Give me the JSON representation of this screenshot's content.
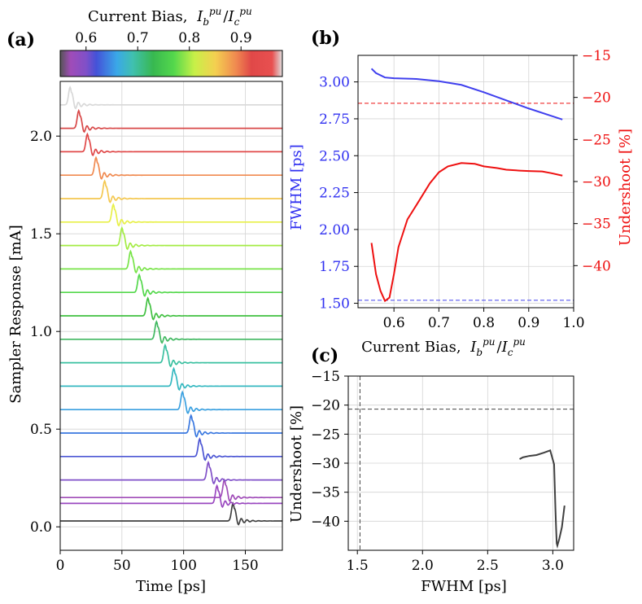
{
  "chart_data": [
    {
      "id": "a",
      "panel_label": "(a)",
      "type": "line",
      "title": "",
      "xlabel": "Time [ps]",
      "ylabel": "Sampler Response [mA]",
      "xlim": [
        0,
        180
      ],
      "ylim": [
        -0.12,
        2.28
      ],
      "xticks": [
        0,
        50,
        100,
        150
      ],
      "yticks": [
        0.0,
        0.5,
        1.0,
        1.5,
        2.0
      ],
      "ytick_labels": [
        "0.0",
        "0.5",
        "1.0",
        "1.5",
        "2.0"
      ],
      "grid": true,
      "description_series": "Stacked sampler response traces, one per current bias; pulse arrival time decreases as bias increases",
      "series": [
        {
          "name": "black trace",
          "offset": 0.03,
          "peak_time": 140,
          "color": "#404040"
        },
        {
          "name": "bias 0.55",
          "offset": 0.15,
          "peak_time": 133,
          "color": "#a04cb8"
        },
        {
          "name": "bias 0.57",
          "offset": 0.12,
          "peak_time": 127,
          "color": "#9a48c0"
        },
        {
          "name": "bias 0.59",
          "offset": 0.24,
          "peak_time": 120,
          "color": "#8050c8"
        },
        {
          "name": "bias 0.61",
          "offset": 0.36,
          "peak_time": 113,
          "color": "#4c56d4"
        },
        {
          "name": "bias 0.63",
          "offset": 0.48,
          "peak_time": 106,
          "color": "#3a78e0"
        },
        {
          "name": "bias 0.65",
          "offset": 0.6,
          "peak_time": 99,
          "color": "#3aa0e0"
        },
        {
          "name": "bias 0.67",
          "offset": 0.72,
          "peak_time": 92,
          "color": "#34b8c0"
        },
        {
          "name": "bias 0.69",
          "offset": 0.84,
          "peak_time": 85,
          "color": "#3ac0a0"
        },
        {
          "name": "bias 0.71",
          "offset": 0.96,
          "peak_time": 78,
          "color": "#40b860"
        },
        {
          "name": "bias 0.73",
          "offset": 1.08,
          "peak_time": 71,
          "color": "#40c040"
        },
        {
          "name": "bias 0.75",
          "offset": 1.2,
          "peak_time": 64,
          "color": "#54d84c"
        },
        {
          "name": "bias 0.77",
          "offset": 1.32,
          "peak_time": 57,
          "color": "#78e448"
        },
        {
          "name": "bias 0.79",
          "offset": 1.44,
          "peak_time": 50,
          "color": "#a4ec44"
        },
        {
          "name": "bias 0.81",
          "offset": 1.56,
          "peak_time": 43,
          "color": "#e8f048"
        },
        {
          "name": "bias 0.83",
          "offset": 1.68,
          "peak_time": 36,
          "color": "#f4c850"
        },
        {
          "name": "bias 0.86",
          "offset": 1.8,
          "peak_time": 29,
          "color": "#f08a50"
        },
        {
          "name": "bias 0.89",
          "offset": 1.92,
          "peak_time": 22,
          "color": "#e04848"
        },
        {
          "name": "bias 0.92",
          "offset": 2.04,
          "peak_time": 15,
          "color": "#d84848"
        },
        {
          "name": "bias 0.97",
          "offset": 2.16,
          "peak_time": 8,
          "color": "#d8d8d8"
        }
      ]
    },
    {
      "id": "colorbar",
      "type": "heatmap",
      "title": "Current Bias, I_b^pu / I_c^pu",
      "title_text": "Current Bias,",
      "title_math": "Ib/Ic",
      "range": [
        0.55,
        0.98
      ],
      "ticks": [
        0.6,
        0.7,
        0.8,
        0.9
      ],
      "tick_labels": [
        "0.6",
        "0.7",
        "0.8",
        "0.9"
      ],
      "color_stops": [
        {
          "value": 0.55,
          "color": "#555555"
        },
        {
          "value": 0.57,
          "color": "#a04cb8"
        },
        {
          "value": 0.6,
          "color": "#8050c8"
        },
        {
          "value": 0.62,
          "color": "#4452d8"
        },
        {
          "value": 0.66,
          "color": "#3aa8e8"
        },
        {
          "value": 0.69,
          "color": "#40c0b0"
        },
        {
          "value": 0.73,
          "color": "#38b850"
        },
        {
          "value": 0.77,
          "color": "#54d84c"
        },
        {
          "value": 0.81,
          "color": "#c8f048"
        },
        {
          "value": 0.85,
          "color": "#f4d050"
        },
        {
          "value": 0.89,
          "color": "#f08a50"
        },
        {
          "value": 0.92,
          "color": "#e04848"
        },
        {
          "value": 0.96,
          "color": "#e85050"
        },
        {
          "value": 0.98,
          "color": "#e0e0e0"
        }
      ]
    },
    {
      "id": "b",
      "panel_label": "(b)",
      "type": "line",
      "xlabel": "Current Bias, I_b^pu / I_c^pu",
      "xlabel_text": "Current Bias,",
      "ylabel": "FWHM [ps]",
      "y2label": "Undershoot [%]",
      "xlim": [
        0.52,
        1.0
      ],
      "ylim": [
        1.47,
        3.18
      ],
      "y2lim": [
        -45.0,
        -15.0
      ],
      "xticks": [
        0.6,
        0.7,
        0.8,
        0.9,
        1.0
      ],
      "xtick_labels": [
        "0.6",
        "0.7",
        "0.8",
        "0.9",
        "1.0"
      ],
      "yticks": [
        1.5,
        1.75,
        2.0,
        2.25,
        2.5,
        2.75,
        3.0
      ],
      "ytick_labels": [
        "1.50",
        "1.75",
        "2.00",
        "2.25",
        "2.50",
        "2.75",
        "3.00"
      ],
      "y2ticks": [
        -40,
        -35,
        -30,
        -25,
        -20,
        -15
      ],
      "y2tick_labels": [
        "−40",
        "−35",
        "−30",
        "−25",
        "−20",
        "−15"
      ],
      "grid": true,
      "series": [
        {
          "name": "FWHM",
          "axis": "left",
          "color": "#4040ee",
          "x": [
            0.55,
            0.56,
            0.58,
            0.6,
            0.65,
            0.7,
            0.75,
            0.8,
            0.85,
            0.9,
            0.95,
            0.975
          ],
          "y": [
            3.09,
            3.06,
            3.03,
            3.025,
            3.02,
            3.005,
            2.98,
            2.93,
            2.875,
            2.82,
            2.77,
            2.745
          ]
        },
        {
          "name": "Undershoot",
          "axis": "right",
          "color": "#ee1010",
          "x": [
            0.55,
            0.56,
            0.57,
            0.58,
            0.59,
            0.6,
            0.61,
            0.63,
            0.65,
            0.68,
            0.7,
            0.72,
            0.75,
            0.78,
            0.8,
            0.83,
            0.85,
            0.88,
            0.9,
            0.93,
            0.95,
            0.975
          ],
          "y": [
            -37.3,
            -41.0,
            -43.0,
            -44.2,
            -43.8,
            -41.0,
            -37.8,
            -34.5,
            -32.8,
            -30.2,
            -28.9,
            -28.2,
            -27.8,
            -27.9,
            -28.2,
            -28.4,
            -28.6,
            -28.7,
            -28.75,
            -28.8,
            -29.0,
            -29.3
          ]
        }
      ],
      "reference_lines": [
        {
          "name": "FWHM reference",
          "axis": "left",
          "value": 1.52,
          "color": "#4040ee",
          "style": "dashed"
        },
        {
          "name": "Undershoot reference",
          "axis": "right",
          "value": -20.7,
          "color": "#ee1010",
          "style": "dashed"
        }
      ]
    },
    {
      "id": "c",
      "panel_label": "(c)",
      "type": "line",
      "xlabel": "FWHM [ps]",
      "ylabel": "Undershoot [%]",
      "xlim": [
        1.43,
        3.16
      ],
      "ylim": [
        -45.0,
        -15.0
      ],
      "xticks": [
        1.5,
        2.0,
        2.5,
        3.0
      ],
      "xtick_labels": [
        "1.5",
        "2.0",
        "2.5",
        "3.0"
      ],
      "yticks": [
        -40,
        -35,
        -30,
        -25,
        -20,
        -15
      ],
      "ytick_labels": [
        "−40",
        "−35",
        "−30",
        "−25",
        "−20",
        "−15"
      ],
      "grid": true,
      "series": [
        {
          "name": "Undershoot vs FWHM",
          "color": "#404040",
          "x": [
            3.09,
            3.07,
            3.05,
            3.035,
            3.03,
            3.025,
            3.02,
            3.01,
            2.98,
            2.93,
            2.875,
            2.82,
            2.77,
            2.745
          ],
          "y": [
            -37.3,
            -41.0,
            -43.0,
            -44.2,
            -43.8,
            -41.0,
            -37.8,
            -30.2,
            -27.8,
            -28.2,
            -28.6,
            -28.75,
            -29.0,
            -29.3
          ]
        }
      ],
      "reference_lines": [
        {
          "name": "FWHM reference",
          "orientation": "vertical",
          "value": 1.52,
          "color": "#444444",
          "style": "dashed"
        },
        {
          "name": "Undershoot reference",
          "orientation": "horizontal",
          "value": -20.7,
          "color": "#444444",
          "style": "dashed"
        }
      ]
    }
  ]
}
